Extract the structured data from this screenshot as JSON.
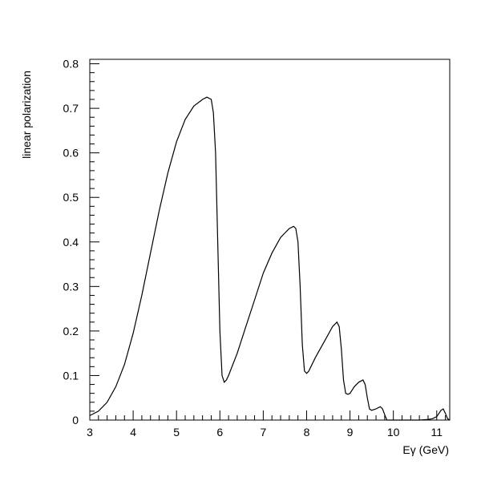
{
  "chart_data": {
    "type": "line",
    "title": "",
    "xlabel": "Eγ (GeV)",
    "ylabel": "linear polarization",
    "xlim": [
      3,
      11.3
    ],
    "ylim": [
      0,
      0.81
    ],
    "grid": false,
    "x_ticks": [
      {
        "value": 3,
        "label": "3"
      },
      {
        "value": 4,
        "label": "4"
      },
      {
        "value": 5,
        "label": "5"
      },
      {
        "value": 6,
        "label": "6"
      },
      {
        "value": 7,
        "label": "7"
      },
      {
        "value": 8,
        "label": "8"
      },
      {
        "value": 9,
        "label": "9"
      },
      {
        "value": 10,
        "label": "10"
      },
      {
        "value": 11,
        "label": "11"
      }
    ],
    "y_ticks": [
      {
        "value": 0,
        "label": "0"
      },
      {
        "value": 0.1,
        "label": "0.1"
      },
      {
        "value": 0.2,
        "label": "0.2"
      },
      {
        "value": 0.3,
        "label": "0.3"
      },
      {
        "value": 0.4,
        "label": "0.4"
      },
      {
        "value": 0.5,
        "label": "0.5"
      },
      {
        "value": 0.6,
        "label": "0.6"
      },
      {
        "value": 0.7,
        "label": "0.7"
      },
      {
        "value": 0.8,
        "label": "0.8"
      }
    ],
    "series": [
      {
        "color": "#000000",
        "x": [
          3.0,
          3.2,
          3.4,
          3.6,
          3.8,
          4.0,
          4.2,
          4.4,
          4.6,
          4.8,
          5.0,
          5.2,
          5.4,
          5.6,
          5.7,
          5.8,
          5.85,
          5.9,
          5.95,
          6.0,
          6.05,
          6.1,
          6.15,
          6.2,
          6.4,
          6.6,
          6.8,
          7.0,
          7.2,
          7.4,
          7.6,
          7.7,
          7.75,
          7.8,
          7.85,
          7.9,
          7.95,
          8.0,
          8.05,
          8.2,
          8.4,
          8.6,
          8.7,
          8.75,
          8.8,
          8.85,
          8.9,
          8.95,
          9.0,
          9.1,
          9.2,
          9.3,
          9.35,
          9.4,
          9.45,
          9.5,
          9.6,
          9.7,
          9.75,
          9.8,
          9.85,
          10.0,
          10.3,
          10.6,
          10.8,
          10.9,
          11.0,
          11.05,
          11.1,
          11.15,
          11.2,
          11.25,
          11.3
        ],
        "y": [
          0.01,
          0.02,
          0.04,
          0.075,
          0.125,
          0.195,
          0.28,
          0.375,
          0.47,
          0.555,
          0.625,
          0.675,
          0.705,
          0.72,
          0.725,
          0.72,
          0.69,
          0.6,
          0.4,
          0.2,
          0.1,
          0.085,
          0.09,
          0.1,
          0.15,
          0.21,
          0.27,
          0.33,
          0.375,
          0.41,
          0.43,
          0.435,
          0.43,
          0.4,
          0.3,
          0.17,
          0.11,
          0.105,
          0.11,
          0.14,
          0.175,
          0.21,
          0.22,
          0.21,
          0.16,
          0.09,
          0.06,
          0.058,
          0.06,
          0.075,
          0.085,
          0.09,
          0.08,
          0.05,
          0.025,
          0.022,
          0.025,
          0.03,
          0.025,
          0.012,
          0.0,
          0.0,
          0.0,
          0.0,
          0.0015,
          0.003,
          0.008,
          0.015,
          0.022,
          0.025,
          0.015,
          0.003,
          0.0
        ]
      }
    ]
  }
}
